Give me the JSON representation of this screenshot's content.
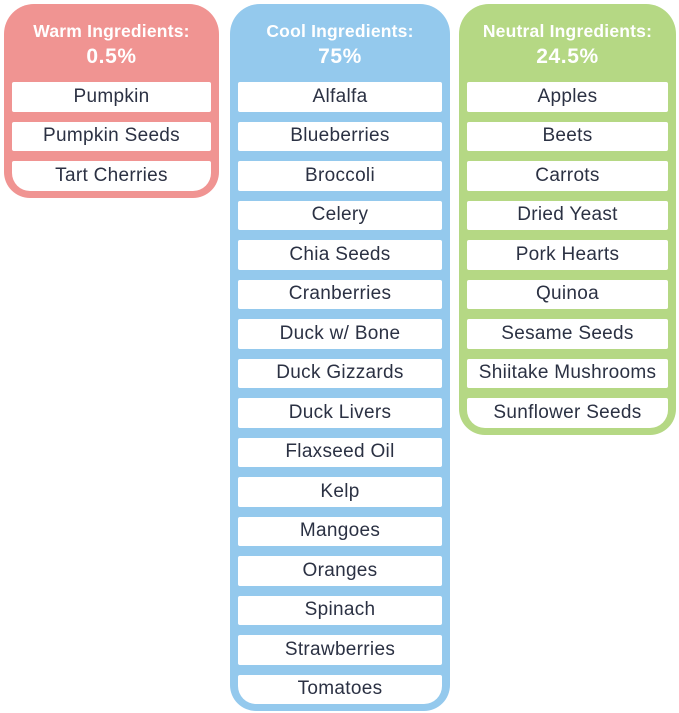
{
  "page": {
    "background_color": "#ffffff",
    "description": "Ingredient temperature-category infographic with three columns"
  },
  "colors": {
    "text": "#2b3143",
    "header_text": "#ffffff",
    "row_background": "#ffffff"
  },
  "columns": [
    {
      "id": "warm",
      "title_line1": "Warm Ingredients:",
      "title_line2": "0.5%",
      "color": "#f09492",
      "items": [
        "Pumpkin",
        "Pumpkin Seeds",
        "Tart Cherries"
      ]
    },
    {
      "id": "cool",
      "title_line1": "Cool Ingredients:",
      "title_line2": "75%",
      "color": "#94c9ed",
      "items": [
        "Alfalfa",
        "Blueberries",
        "Broccoli",
        "Celery",
        "Chia Seeds",
        "Cranberries",
        "Duck w/ Bone",
        "Duck Gizzards",
        "Duck Livers",
        "Flaxseed Oil",
        "Kelp",
        "Mangoes",
        "Oranges",
        "Spinach",
        "Strawberries",
        "Tomatoes"
      ]
    },
    {
      "id": "neutral",
      "title_line1": "Neutral Ingredients:",
      "title_line2": "24.5%",
      "color": "#b5d884",
      "items": [
        "Apples",
        "Beets",
        "Carrots",
        "Dried Yeast",
        "Pork Hearts",
        "Quinoa",
        "Sesame Seeds",
        "Shiitake Mushrooms",
        "Sunflower Seeds"
      ]
    }
  ],
  "chart_data": {
    "type": "table",
    "title": "Ingredients by temperature category",
    "categories": [
      "Warm Ingredients",
      "Cool Ingredients",
      "Neutral Ingredients"
    ],
    "values": [
      0.5,
      75,
      24.5
    ],
    "unit": "%"
  }
}
